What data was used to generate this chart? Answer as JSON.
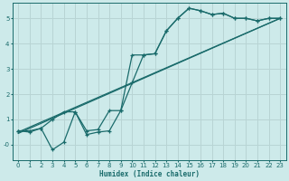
{
  "background_color": "#cdeaea",
  "grid_color": "#b8d4d4",
  "line_color": "#1a6b6b",
  "xlabel": "Humidex (Indice chaleur)",
  "xlim": [
    -0.5,
    23.5
  ],
  "ylim": [
    -0.6,
    5.6
  ],
  "yticks": [
    0,
    1,
    2,
    3,
    4,
    5
  ],
  "ytick_labels": [
    "-0",
    "1",
    "2",
    "3",
    "4",
    "5"
  ],
  "xticks": [
    0,
    1,
    2,
    3,
    4,
    5,
    6,
    7,
    8,
    9,
    10,
    11,
    12,
    13,
    14,
    15,
    16,
    17,
    18,
    19,
    20,
    21,
    22,
    23
  ],
  "line1_x": [
    0,
    1,
    2,
    3,
    4,
    5,
    6,
    7,
    8,
    9,
    10,
    11,
    12,
    13,
    14,
    15,
    16,
    17,
    18,
    19,
    20,
    21,
    22,
    23
  ],
  "line1_y": [
    0.55,
    0.55,
    0.65,
    1.0,
    1.3,
    1.3,
    0.55,
    0.6,
    1.35,
    1.35,
    3.55,
    3.55,
    3.6,
    4.5,
    5.0,
    5.4,
    5.3,
    5.15,
    5.2,
    5.0,
    5.0,
    4.9,
    5.0,
    5.0
  ],
  "line2_x": [
    0,
    1,
    2,
    3,
    4,
    5,
    6,
    7,
    8,
    9,
    10,
    11,
    12,
    13,
    14,
    15,
    16,
    17,
    18,
    19,
    20,
    21,
    22,
    23
  ],
  "line2_y": [
    0.55,
    0.5,
    0.65,
    -0.2,
    0.1,
    1.3,
    0.4,
    0.5,
    0.55,
    1.35,
    2.45,
    3.55,
    3.6,
    4.5,
    5.0,
    5.4,
    5.3,
    5.15,
    5.2,
    5.0,
    5.0,
    4.9,
    5.0,
    5.0
  ],
  "line3_x": [
    0,
    23
  ],
  "line3_y": [
    0.5,
    5.0
  ],
  "line4_x": [
    0,
    23
  ],
  "line4_y": [
    0.45,
    5.0
  ]
}
